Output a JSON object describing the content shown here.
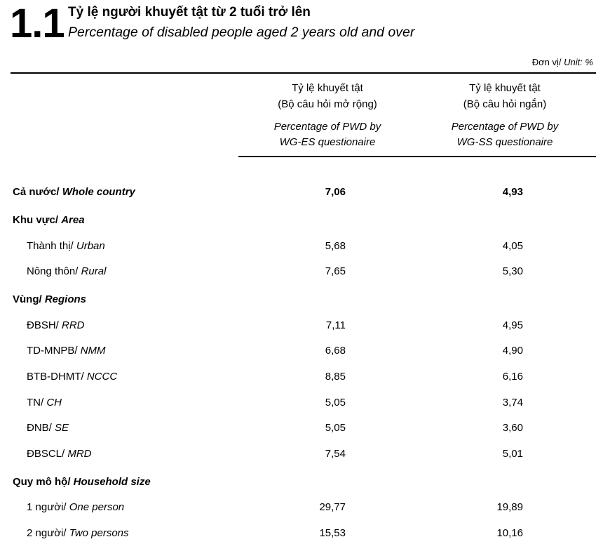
{
  "header": {
    "number": "1.1",
    "title_vi": "Tỷ lệ người khuyết tật từ 2 tuổi trở lên",
    "title_en": "Percentage of disabled people aged 2 years old and over",
    "unit_vi": "Đơn vị/",
    "unit_en": "Unit: %"
  },
  "table": {
    "columns": [
      {
        "vi": [
          "Tỷ lệ khuyết tật",
          "(Bộ câu hỏi mở rộng)"
        ],
        "en": [
          "Percentage of PWD by",
          "WG-ES questionaire"
        ]
      },
      {
        "vi": [
          "Tỷ lệ khuyết tật",
          "(Bộ câu hỏi ngắn)"
        ],
        "en": [
          "Percentage of PWD by",
          "WG-SS questionaire"
        ]
      }
    ],
    "whole_country": {
      "label_vi": "Cả nước/",
      "label_en": "Whole country",
      "values": [
        "7,06",
        "4,93"
      ]
    },
    "sections": [
      {
        "title_vi": "Khu vực/",
        "title_en": "Area",
        "rows": [
          {
            "label_vi": "Thành thị/",
            "label_en": "Urban",
            "values": [
              "5,68",
              "4,05"
            ]
          },
          {
            "label_vi": "Nông thôn/",
            "label_en": "Rural",
            "values": [
              "7,65",
              "5,30"
            ]
          }
        ]
      },
      {
        "title_vi": "Vùng/",
        "title_en": "Regions",
        "rows": [
          {
            "label_vi": "ĐBSH/",
            "label_en": "RRD",
            "values": [
              "7,11",
              "4,95"
            ]
          },
          {
            "label_vi": "TD-MNPB/",
            "label_en": "NMM",
            "values": [
              "6,68",
              "4,90"
            ]
          },
          {
            "label_vi": "BTB-DHMT/",
            "label_en": "NCCC",
            "values": [
              "8,85",
              "6,16"
            ]
          },
          {
            "label_vi": "TN/",
            "label_en": "CH",
            "values": [
              "5,05",
              "3,74"
            ]
          },
          {
            "label_vi": "ĐNB/",
            "label_en": "SE",
            "values": [
              "5,05",
              "3,60"
            ]
          },
          {
            "label_vi": "ĐBSCL/",
            "label_en": "MRD",
            "values": [
              "7,54",
              "5,01"
            ]
          }
        ]
      },
      {
        "title_vi": "Quy mô hộ/",
        "title_en": "Household size",
        "rows": [
          {
            "label_vi": "1 người/",
            "label_en": "One person",
            "values": [
              "29,77",
              "19,89"
            ]
          },
          {
            "label_vi": "2 người/",
            "label_en": "Two persons",
            "values": [
              "15,53",
              "10,16"
            ]
          }
        ]
      }
    ]
  }
}
